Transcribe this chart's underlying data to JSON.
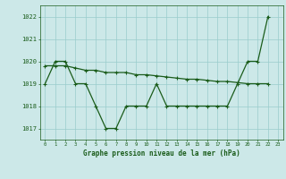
{
  "x": [
    0,
    1,
    2,
    3,
    4,
    5,
    6,
    7,
    8,
    9,
    10,
    11,
    12,
    13,
    14,
    15,
    16,
    17,
    18,
    19,
    20,
    21,
    22,
    23
  ],
  "line1": [
    1019,
    1020,
    1020,
    1019,
    1019,
    1018,
    1017,
    1017,
    1018,
    1018,
    1018,
    1019,
    1018,
    1018,
    1018,
    1018,
    1018,
    1018,
    1018,
    1019,
    1020,
    1020,
    1022,
    null
  ],
  "line2": [
    1019.8,
    1019.8,
    1019.8,
    1019.7,
    1019.6,
    1019.6,
    1019.5,
    1019.5,
    1019.5,
    1019.4,
    1019.4,
    1019.35,
    1019.3,
    1019.25,
    1019.2,
    1019.2,
    1019.15,
    1019.1,
    1019.1,
    1019.05,
    1019.0,
    1019.0,
    1019.0,
    null
  ],
  "background_color": "#cce8e8",
  "grid_color": "#99cccc",
  "line_color": "#1a5c1a",
  "ylabel_ticks": [
    1017,
    1018,
    1019,
    1020,
    1021,
    1022
  ],
  "xlabel": "Graphe pression niveau de la mer (hPa)",
  "ylim": [
    1016.5,
    1022.5
  ],
  "xlim": [
    -0.5,
    23.5
  ],
  "figsize": [
    3.2,
    2.0
  ],
  "dpi": 100
}
